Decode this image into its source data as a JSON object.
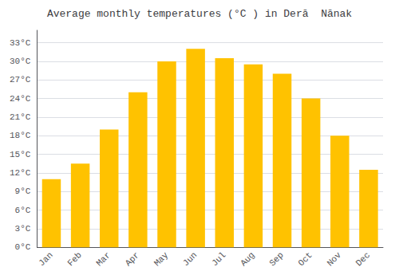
{
  "chart_data": {
    "type": "bar",
    "title": "Average monthly temperatures (°C ) in Derā  Nānak",
    "categories": [
      "Jan",
      "Feb",
      "Mar",
      "Apr",
      "May",
      "Jun",
      "Jul",
      "Aug",
      "Sep",
      "Oct",
      "Nov",
      "Dec"
    ],
    "values": [
      11,
      13.5,
      19,
      25,
      30,
      32,
      30.5,
      29.5,
      28,
      24,
      18,
      12.5
    ],
    "color": "#FFC200",
    "ylim": [
      0,
      35
    ],
    "yticks": [
      {
        "value": 0,
        "label": "0°C"
      },
      {
        "value": 3,
        "label": "3°C"
      },
      {
        "value": 6,
        "label": "6°C"
      },
      {
        "value": 9,
        "label": "9°C"
      },
      {
        "value": 12,
        "label": "12°C"
      },
      {
        "value": 15,
        "label": "15°C"
      },
      {
        "value": 18,
        "label": "18°C"
      },
      {
        "value": 21,
        "label": "21°C"
      },
      {
        "value": 24,
        "label": "24°C"
      },
      {
        "value": 27,
        "label": "27°C"
      },
      {
        "value": 30,
        "label": "30°C"
      },
      {
        "value": 33,
        "label": "33°C"
      }
    ],
    "grid": true
  }
}
